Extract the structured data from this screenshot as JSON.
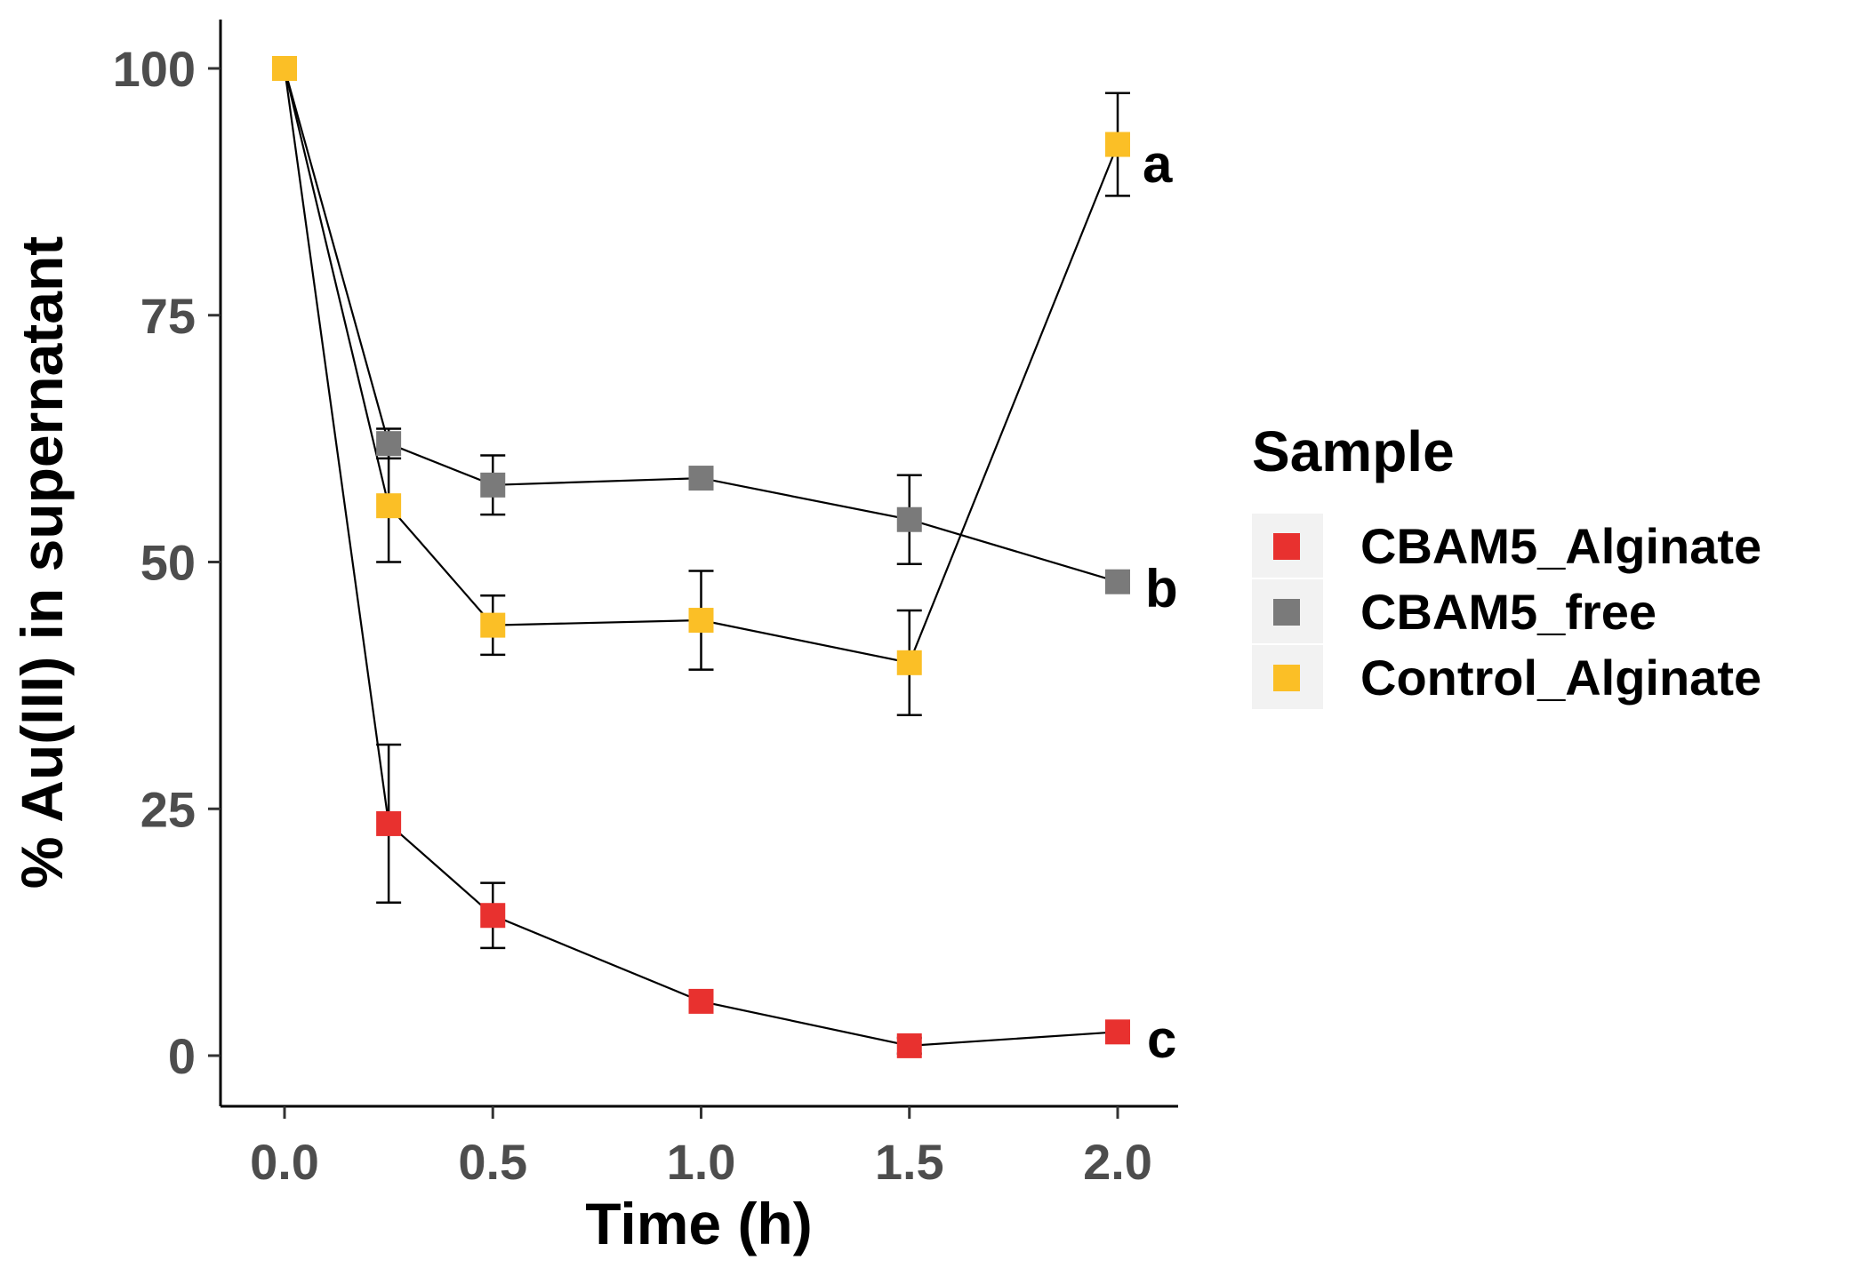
{
  "chart_data": {
    "type": "line",
    "title": "",
    "xlabel": "Time (h)",
    "ylabel": "% Au(III) in supernatant",
    "xlim": [
      -0.15,
      2.15
    ],
    "ylim": [
      -5.2,
      104.5
    ],
    "x_ticks": [
      0.0,
      0.5,
      1.0,
      1.5,
      2.0
    ],
    "x_tick_labels": [
      "0.0",
      "0.5",
      "1.0",
      "1.5",
      "2.0"
    ],
    "y_ticks": [
      0,
      25,
      50,
      75,
      100
    ],
    "y_tick_labels": [
      "0",
      "25",
      "50",
      "75",
      "100"
    ],
    "grid": false,
    "legend": {
      "title": "Sample",
      "position": "right"
    },
    "series": [
      {
        "name": "CBAM5_Alginate",
        "color": "#E8312F",
        "points": [
          {
            "x": 0.0,
            "y": 100.0,
            "err": 0.0
          },
          {
            "x": 0.25,
            "y": 23.5,
            "err": 8.0
          },
          {
            "x": 0.5,
            "y": 14.2,
            "err": 3.3
          },
          {
            "x": 1.0,
            "y": 5.5,
            "err": 1.1
          },
          {
            "x": 1.5,
            "y": 1.0,
            "err": 0.8
          },
          {
            "x": 2.0,
            "y": 2.4,
            "err": 0.9
          }
        ]
      },
      {
        "name": "CBAM5_free",
        "color": "#7A7A7A",
        "points": [
          {
            "x": 0.0,
            "y": 100.0,
            "err": 0.0
          },
          {
            "x": 0.25,
            "y": 62.0,
            "err": 1.5
          },
          {
            "x": 0.5,
            "y": 57.8,
            "err": 3.0
          },
          {
            "x": 1.0,
            "y": 58.5,
            "err": 1.0
          },
          {
            "x": 1.5,
            "y": 54.3,
            "err": 4.5
          },
          {
            "x": 2.0,
            "y": 48.0,
            "err": 0.8
          }
        ]
      },
      {
        "name": "Control_Alginate",
        "color": "#FBBF26",
        "points": [
          {
            "x": 0.0,
            "y": 100.0,
            "err": 0.0
          },
          {
            "x": 0.25,
            "y": 55.7,
            "err": 5.7
          },
          {
            "x": 0.5,
            "y": 43.6,
            "err": 3.0
          },
          {
            "x": 1.0,
            "y": 44.1,
            "err": 5.0
          },
          {
            "x": 1.5,
            "y": 39.8,
            "err": 5.3
          },
          {
            "x": 2.0,
            "y": 92.3,
            "err": 5.2
          }
        ]
      }
    ],
    "annotations": [
      {
        "text": "a",
        "x": 2.0,
        "y": 90.5
      },
      {
        "text": "b",
        "x": 2.0,
        "y": 47.0
      },
      {
        "text": "c",
        "x": 2.0,
        "y": 1.0
      }
    ]
  }
}
